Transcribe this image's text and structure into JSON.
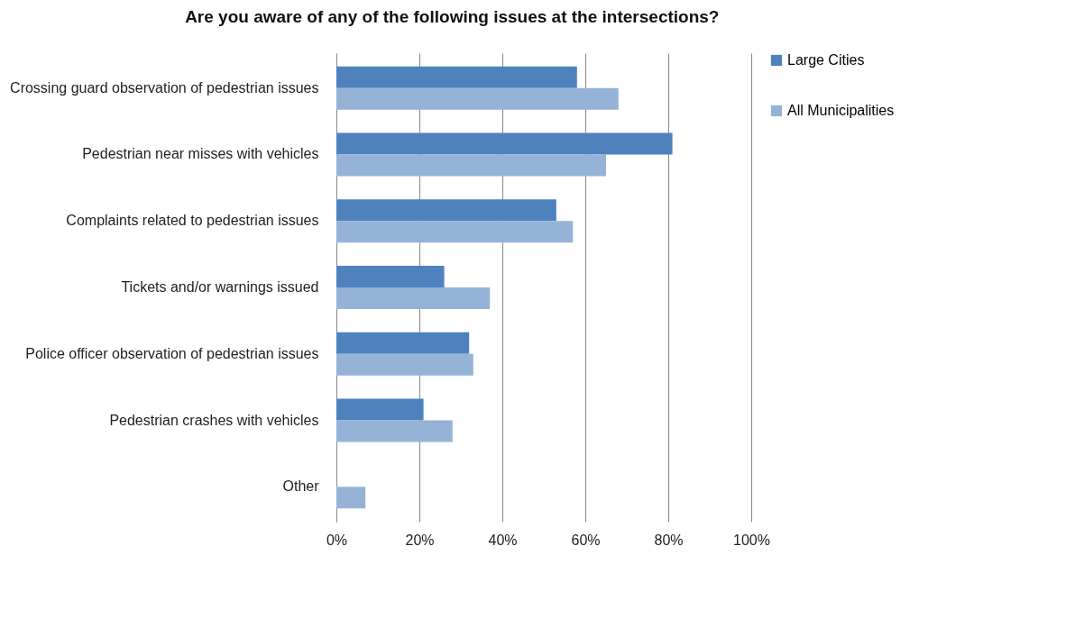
{
  "chart_data": {
    "type": "bar",
    "orientation": "horizontal",
    "title": "Are you aware of any of the following issues at the intersections?",
    "categories": [
      "Crossing guard observation of pedestrian issues",
      "Pedestrian near misses with vehicles",
      "Complaints related to pedestrian issues",
      "Tickets and/or warnings issued",
      "Police officer observation of pedestrian issues",
      "Pedestrian crashes with vehicles",
      "Other"
    ],
    "series": [
      {
        "name": "Large Cities",
        "color": "#4f81bd",
        "values": [
          58,
          81,
          53,
          26,
          32,
          21,
          0
        ]
      },
      {
        "name": "All Municipalities",
        "color": "#95b3d7",
        "values": [
          68,
          65,
          57,
          37,
          33,
          28,
          7
        ]
      }
    ],
    "xlim": [
      0,
      100
    ],
    "xticks": [
      {
        "value": 0,
        "label": "0%"
      },
      {
        "value": 20,
        "label": "20%"
      },
      {
        "value": 40,
        "label": "40%"
      },
      {
        "value": 60,
        "label": "60%"
      },
      {
        "value": 80,
        "label": "80%"
      },
      {
        "value": 100,
        "label": "100%"
      }
    ],
    "grid": "x",
    "legend": "right"
  }
}
